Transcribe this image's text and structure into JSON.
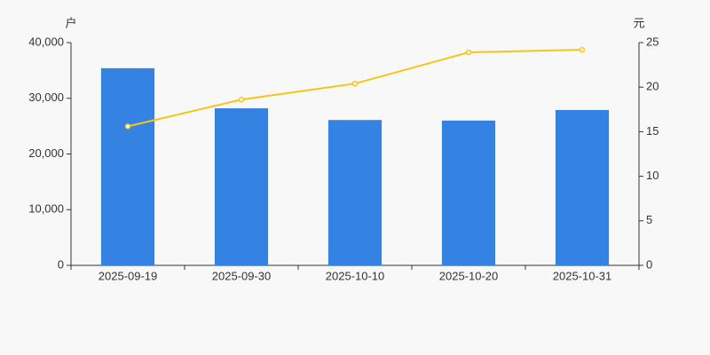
{
  "chart_data": {
    "type": "bar",
    "y_label": "户",
    "y2_label": "元",
    "categories": [
      "2025-09-19",
      "2025-09-30",
      "2025-10-10",
      "2025-10-20",
      "2025-10-31"
    ],
    "series": [
      {
        "type": "bar",
        "color": "#3482e2",
        "values": [
          35400,
          28200,
          26100,
          26000,
          27900
        ]
      },
      {
        "type": "line",
        "axis": "y2",
        "color": "#f5c518",
        "values": [
          15.6,
          18.6,
          20.4,
          23.9,
          24.2
        ]
      }
    ],
    "ylim": [
      0,
      40000
    ],
    "yticks": [
      0,
      {
        "value": 10000,
        "label": "10,000"
      },
      {
        "value": 20000,
        "label": "20,000"
      },
      {
        "value": 30000,
        "label": "30,000"
      },
      {
        "value": 40000,
        "label": "40,000"
      }
    ],
    "y2lim": [
      0,
      25
    ],
    "y2ticks": [
      0,
      5,
      10,
      15,
      20,
      25
    ]
  }
}
